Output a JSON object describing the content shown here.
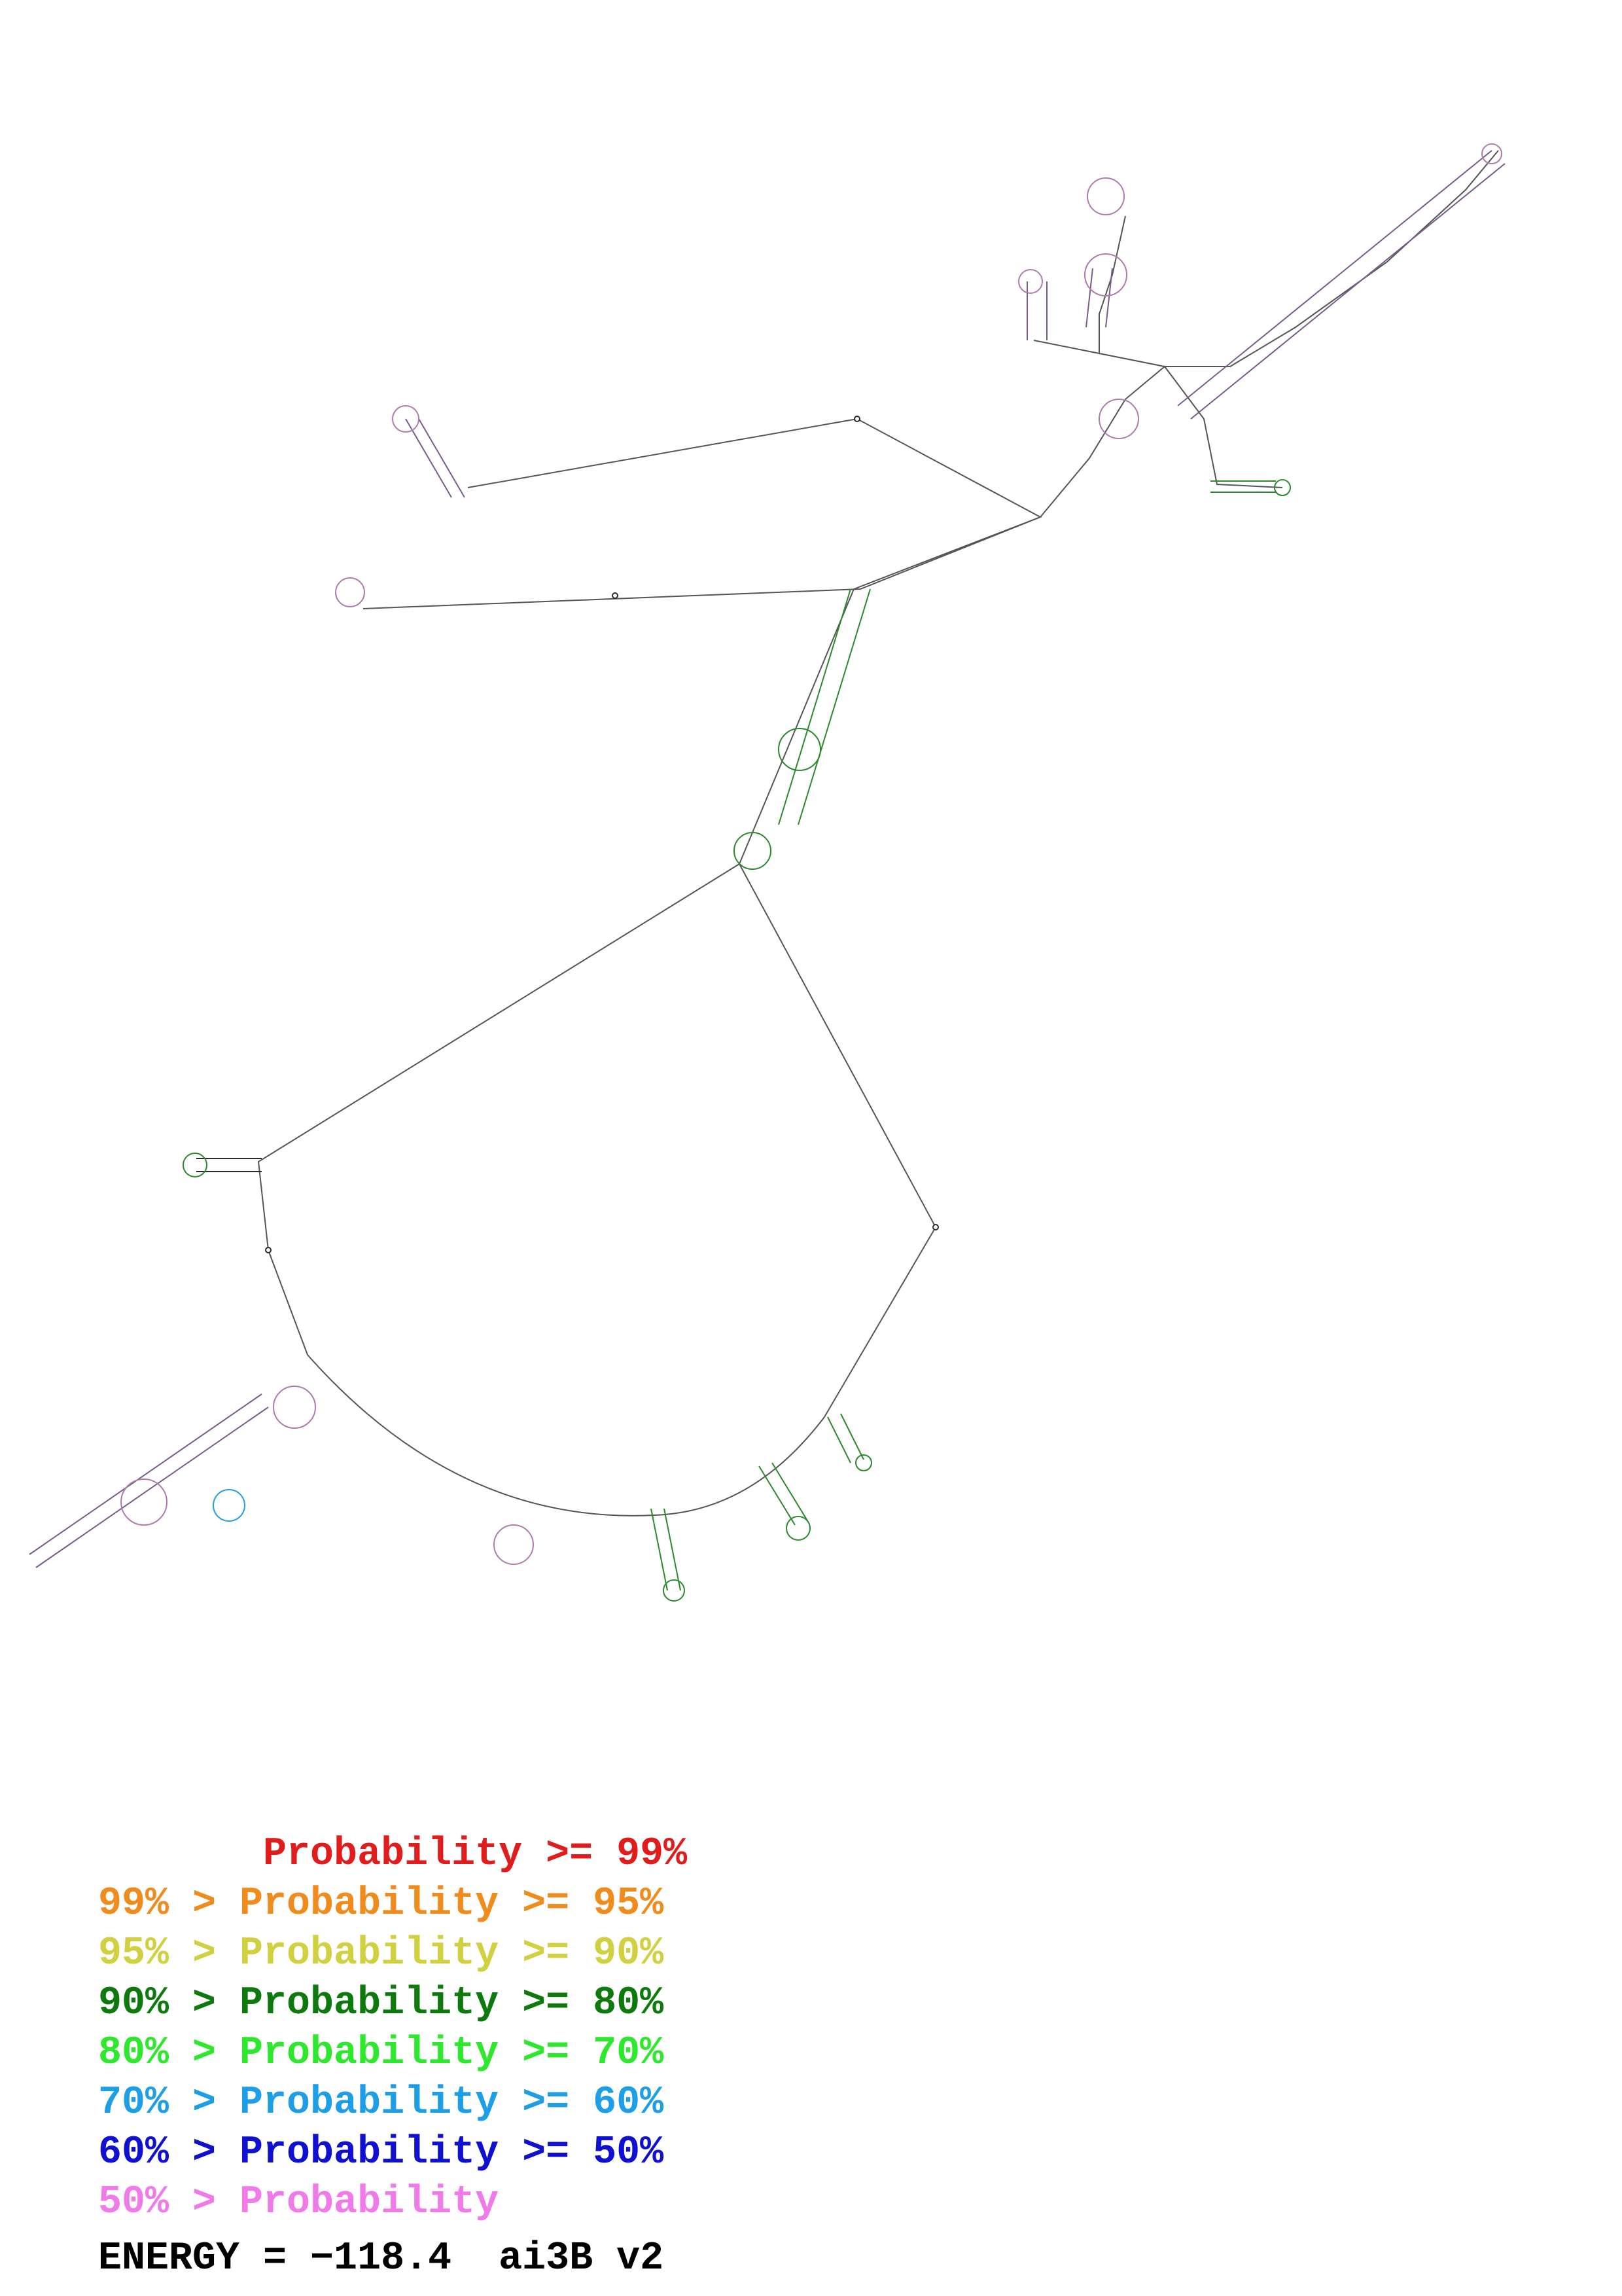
{
  "legend": {
    "items": [
      {
        "text": "       Probability >= 99%",
        "color": "#e01c1c"
      },
      {
        "text": "99% > Probability >= 95%",
        "color": "#f08c1e"
      },
      {
        "text": "95% > Probability >= 90%",
        "color": "#d0d040"
      },
      {
        "text": "90% > Probability >= 80%",
        "color": "#0e7a0e"
      },
      {
        "text": "80% > Probability >= 70%",
        "color": "#2ee82e"
      },
      {
        "text": "70% > Probability >= 60%",
        "color": "#1e9ee6"
      },
      {
        "text": "60% > Probability >= 50%",
        "color": "#1010d0"
      },
      {
        "text": "50% > Probability",
        "color": "#f07ae8"
      }
    ],
    "energy": "ENERGY = −118.4  ai3B v2",
    "energy_color": "#000000"
  }
}
